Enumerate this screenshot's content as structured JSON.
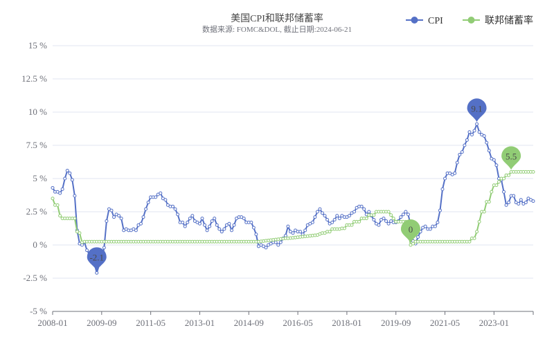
{
  "chart_data": {
    "type": "line",
    "title": "美国CPI和联邦储蓄率",
    "subtitle": "数据来源: FOMC&DOL, 截止日期:2024-06-21",
    "ylim": [
      -5,
      15
    ],
    "y_ticks": [
      "-5 %",
      "-2.5 %",
      "0 %",
      "2.5 %",
      "5 %",
      "7.5 %",
      "10 %",
      "12.5 %",
      "15 %"
    ],
    "y_tick_values": [
      -5,
      -2.5,
      0,
      2.5,
      5,
      7.5,
      10,
      12.5,
      15
    ],
    "x_ticks": [
      "2008-01",
      "2009-09",
      "2011-05",
      "2013-01",
      "2014-09",
      "2016-05",
      "2018-01",
      "2019-09",
      "2021-05",
      "2023-01"
    ],
    "x_start": "2008-01",
    "x_end": "2024-05",
    "grid": true,
    "legend_position": "top-right",
    "series": [
      {
        "name": "CPI",
        "color": "#5470c6",
        "keyframes": [
          [
            0,
            4.3
          ],
          [
            1,
            4.0
          ],
          [
            2,
            4.0
          ],
          [
            3,
            3.9
          ],
          [
            4,
            4.2
          ],
          [
            5,
            5.0
          ],
          [
            6,
            5.6
          ],
          [
            7,
            5.4
          ],
          [
            8,
            4.9
          ],
          [
            9,
            3.7
          ],
          [
            10,
            1.1
          ],
          [
            11,
            0.1
          ],
          [
            12,
            0.0
          ],
          [
            13,
            0.2
          ],
          [
            14,
            -0.4
          ],
          [
            15,
            -0.7
          ],
          [
            16,
            -1.3
          ],
          [
            17,
            -1.4
          ],
          [
            18,
            -2.1
          ],
          [
            19,
            -1.5
          ],
          [
            20,
            -1.3
          ],
          [
            21,
            -0.2
          ],
          [
            22,
            1.8
          ],
          [
            23,
            2.7
          ],
          [
            24,
            2.6
          ],
          [
            25,
            2.1
          ],
          [
            26,
            2.3
          ],
          [
            27,
            2.2
          ],
          [
            28,
            2.0
          ],
          [
            29,
            1.1
          ],
          [
            30,
            1.2
          ],
          [
            31,
            1.1
          ],
          [
            32,
            1.1
          ],
          [
            33,
            1.2
          ],
          [
            34,
            1.1
          ],
          [
            35,
            1.5
          ],
          [
            36,
            1.6
          ],
          [
            37,
            2.1
          ],
          [
            38,
            2.7
          ],
          [
            39,
            3.2
          ],
          [
            40,
            3.6
          ],
          [
            41,
            3.6
          ],
          [
            42,
            3.6
          ],
          [
            43,
            3.8
          ],
          [
            44,
            3.9
          ],
          [
            45,
            3.5
          ],
          [
            46,
            3.4
          ],
          [
            47,
            3.0
          ],
          [
            48,
            2.9
          ],
          [
            49,
            2.9
          ],
          [
            50,
            2.7
          ],
          [
            51,
            2.3
          ],
          [
            52,
            1.7
          ],
          [
            53,
            1.7
          ],
          [
            54,
            1.4
          ],
          [
            55,
            1.7
          ],
          [
            56,
            2.0
          ],
          [
            57,
            2.2
          ],
          [
            58,
            1.8
          ],
          [
            59,
            1.7
          ],
          [
            60,
            1.6
          ],
          [
            61,
            2.0
          ],
          [
            62,
            1.5
          ],
          [
            63,
            1.1
          ],
          [
            64,
            1.4
          ],
          [
            65,
            1.8
          ],
          [
            66,
            2.0
          ],
          [
            67,
            1.5
          ],
          [
            68,
            1.2
          ],
          [
            69,
            1.0
          ],
          [
            70,
            1.2
          ],
          [
            71,
            1.5
          ],
          [
            72,
            1.6
          ],
          [
            73,
            1.1
          ],
          [
            74,
            1.5
          ],
          [
            75,
            2.0
          ],
          [
            76,
            2.1
          ],
          [
            77,
            2.1
          ],
          [
            78,
            2.0
          ],
          [
            79,
            1.7
          ],
          [
            80,
            1.7
          ],
          [
            81,
            1.7
          ],
          [
            82,
            1.3
          ],
          [
            83,
            0.8
          ],
          [
            84,
            -0.1
          ],
          [
            85,
            0.0
          ],
          [
            86,
            -0.1
          ],
          [
            87,
            -0.2
          ],
          [
            88,
            0.0
          ],
          [
            89,
            0.1
          ],
          [
            90,
            0.2
          ],
          [
            91,
            0.2
          ],
          [
            92,
            0.0
          ],
          [
            93,
            0.2
          ],
          [
            94,
            0.5
          ],
          [
            95,
            0.7
          ],
          [
            96,
            1.4
          ],
          [
            97,
            1.0
          ],
          [
            98,
            0.9
          ],
          [
            99,
            1.1
          ],
          [
            100,
            1.0
          ],
          [
            101,
            1.0
          ],
          [
            102,
            0.8
          ],
          [
            103,
            1.1
          ],
          [
            104,
            1.5
          ],
          [
            105,
            1.6
          ],
          [
            106,
            1.7
          ],
          [
            107,
            2.1
          ],
          [
            108,
            2.5
          ],
          [
            109,
            2.7
          ],
          [
            110,
            2.4
          ],
          [
            111,
            2.2
          ],
          [
            112,
            1.9
          ],
          [
            113,
            1.6
          ],
          [
            114,
            1.7
          ],
          [
            115,
            1.9
          ],
          [
            116,
            2.2
          ],
          [
            117,
            2.0
          ],
          [
            118,
            2.2
          ],
          [
            119,
            2.1
          ],
          [
            120,
            2.1
          ],
          [
            121,
            2.2
          ],
          [
            122,
            2.4
          ],
          [
            123,
            2.5
          ],
          [
            124,
            2.8
          ],
          [
            125,
            2.9
          ],
          [
            126,
            2.9
          ],
          [
            127,
            2.7
          ],
          [
            128,
            2.3
          ],
          [
            129,
            2.5
          ],
          [
            130,
            2.2
          ],
          [
            131,
            1.9
          ],
          [
            132,
            1.6
          ],
          [
            133,
            1.5
          ],
          [
            134,
            1.9
          ],
          [
            135,
            2.0
          ],
          [
            136,
            1.8
          ],
          [
            137,
            1.6
          ],
          [
            138,
            1.8
          ],
          [
            139,
            1.7
          ],
          [
            140,
            1.7
          ],
          [
            141,
            1.8
          ],
          [
            142,
            2.1
          ],
          [
            143,
            2.3
          ],
          [
            144,
            2.5
          ],
          [
            145,
            2.3
          ],
          [
            146,
            1.5
          ],
          [
            147,
            0.3
          ],
          [
            148,
            0.1
          ],
          [
            149,
            0.6
          ],
          [
            150,
            1.0
          ],
          [
            151,
            1.3
          ],
          [
            152,
            1.4
          ],
          [
            153,
            1.2
          ],
          [
            154,
            1.2
          ],
          [
            155,
            1.4
          ],
          [
            156,
            1.4
          ],
          [
            157,
            1.7
          ],
          [
            158,
            2.6
          ],
          [
            159,
            4.2
          ],
          [
            160,
            5.0
          ],
          [
            161,
            5.4
          ],
          [
            162,
            5.4
          ],
          [
            163,
            5.3
          ],
          [
            164,
            5.4
          ],
          [
            165,
            6.2
          ],
          [
            166,
            6.8
          ],
          [
            167,
            7.0
          ],
          [
            168,
            7.5
          ],
          [
            169,
            7.9
          ],
          [
            170,
            8.5
          ],
          [
            171,
            8.3
          ],
          [
            172,
            8.6
          ],
          [
            173,
            9.1
          ],
          [
            174,
            8.5
          ],
          [
            175,
            8.3
          ],
          [
            176,
            8.2
          ],
          [
            177,
            7.7
          ],
          [
            178,
            7.1
          ],
          [
            179,
            6.5
          ],
          [
            180,
            6.4
          ],
          [
            181,
            6.0
          ],
          [
            182,
            5.0
          ],
          [
            183,
            4.9
          ],
          [
            184,
            4.0
          ],
          [
            185,
            3.0
          ],
          [
            186,
            3.2
          ],
          [
            187,
            3.7
          ],
          [
            188,
            3.7
          ],
          [
            189,
            3.2
          ],
          [
            190,
            3.1
          ],
          [
            191,
            3.4
          ],
          [
            192,
            3.1
          ],
          [
            193,
            3.2
          ],
          [
            194,
            3.5
          ],
          [
            195,
            3.4
          ],
          [
            196,
            3.3
          ]
        ]
      },
      {
        "name": "联邦储蓄率",
        "color": "#91cc75",
        "keyframes": [
          [
            0,
            3.5
          ],
          [
            1,
            3.0
          ],
          [
            2,
            3.0
          ],
          [
            3,
            2.2
          ],
          [
            4,
            2.0
          ],
          [
            5,
            2.0
          ],
          [
            6,
            2.0
          ],
          [
            7,
            2.0
          ],
          [
            8,
            2.0
          ],
          [
            9,
            2.0
          ],
          [
            10,
            1.0
          ],
          [
            11,
            0.9
          ],
          [
            12,
            0.2
          ],
          [
            13,
            0.25
          ],
          [
            14,
            0.25
          ],
          [
            15,
            0.25
          ],
          [
            84,
            0.25
          ],
          [
            95,
            0.5
          ],
          [
            96,
            0.5
          ],
          [
            108,
            0.75
          ],
          [
            110,
            0.9
          ],
          [
            111,
            0.9
          ],
          [
            112,
            1.0
          ],
          [
            113,
            1.0
          ],
          [
            114,
            1.2
          ],
          [
            115,
            1.2
          ],
          [
            116,
            1.2
          ],
          [
            117,
            1.2
          ],
          [
            118,
            1.25
          ],
          [
            119,
            1.25
          ],
          [
            120,
            1.5
          ],
          [
            121,
            1.5
          ],
          [
            122,
            1.5
          ],
          [
            123,
            1.75
          ],
          [
            124,
            1.75
          ],
          [
            125,
            1.75
          ],
          [
            126,
            2.0
          ],
          [
            127,
            2.0
          ],
          [
            128,
            2.0
          ],
          [
            129,
            2.25
          ],
          [
            130,
            2.25
          ],
          [
            131,
            2.25
          ],
          [
            132,
            2.5
          ],
          [
            133,
            2.5
          ],
          [
            134,
            2.5
          ],
          [
            135,
            2.5
          ],
          [
            136,
            2.5
          ],
          [
            137,
            2.5
          ],
          [
            138,
            2.25
          ],
          [
            139,
            2.0
          ],
          [
            140,
            1.75
          ],
          [
            141,
            1.75
          ],
          [
            142,
            1.75
          ],
          [
            143,
            1.75
          ],
          [
            144,
            1.75
          ],
          [
            145,
            1.0
          ],
          [
            146,
            0.0
          ],
          [
            147,
            0.1
          ],
          [
            148,
            0.25
          ],
          [
            170,
            0.25
          ],
          [
            171,
            0.5
          ],
          [
            172,
            0.5
          ],
          [
            173,
            1.0
          ],
          [
            174,
            1.75
          ],
          [
            175,
            2.5
          ],
          [
            176,
            2.5
          ],
          [
            177,
            3.25
          ],
          [
            178,
            3.25
          ],
          [
            179,
            4.0
          ],
          [
            180,
            4.5
          ],
          [
            181,
            4.5
          ],
          [
            182,
            4.75
          ],
          [
            183,
            5.0
          ],
          [
            184,
            5.0
          ],
          [
            185,
            5.25
          ],
          [
            186,
            5.25
          ],
          [
            187,
            5.5
          ],
          [
            196,
            5.5
          ]
        ]
      }
    ],
    "markers": [
      {
        "series": 0,
        "x": 18,
        "value": -2.1,
        "label": "-2.1"
      },
      {
        "series": 0,
        "x": 173,
        "value": 9.1,
        "label": "9.1"
      },
      {
        "series": 1,
        "x": 146,
        "value": 0.0,
        "label": "0"
      },
      {
        "series": 1,
        "x": 187,
        "value": 5.5,
        "label": "5.5"
      }
    ]
  }
}
